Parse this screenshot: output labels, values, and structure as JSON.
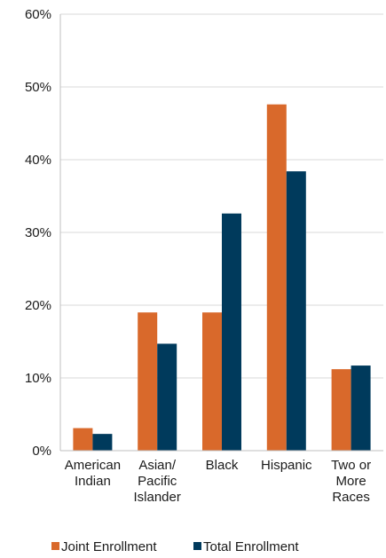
{
  "chart_data": {
    "type": "bar",
    "categories": [
      [
        "American",
        "Indian"
      ],
      [
        "Asian/",
        "Pacific",
        "Islander"
      ],
      [
        "Black"
      ],
      [
        "Hispanic"
      ],
      [
        "Two or",
        "More",
        "Races"
      ]
    ],
    "series": [
      {
        "name": "Joint Enrollment",
        "color": "#d9692b",
        "values": [
          3.1,
          19.0,
          19.0,
          47.6,
          11.2
        ]
      },
      {
        "name": "Total Enrollment",
        "color": "#003a5c",
        "values": [
          2.3,
          14.7,
          32.6,
          38.4,
          11.7
        ]
      }
    ],
    "ylim": [
      0,
      60
    ],
    "yticks": [
      0,
      10,
      20,
      30,
      40,
      50,
      60
    ],
    "ytick_labels": [
      "0%",
      "10%",
      "20%",
      "30%",
      "40%",
      "50%",
      "60%"
    ],
    "grid": true,
    "gridline_color": "#d9d9d9",
    "legend": "bottom-center",
    "title": "",
    "xlabel": "",
    "ylabel": ""
  }
}
